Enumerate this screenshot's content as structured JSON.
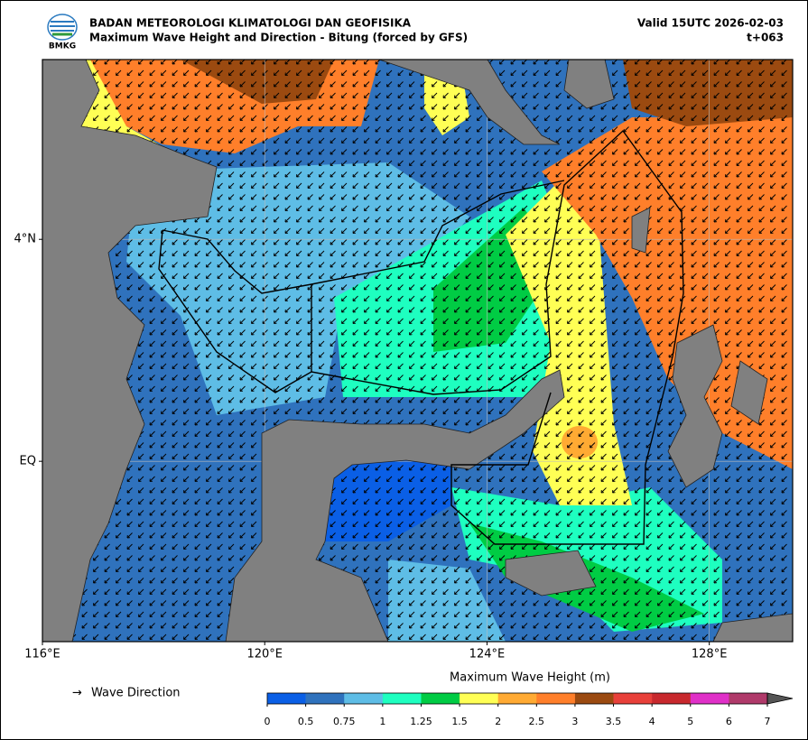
{
  "header": {
    "agency": "BADAN METEOROLOGI KLIMATOLOGI DAN GEOFISIKA",
    "title": "Maximum Wave Height and Direction - Bitung (forced by GFS)",
    "valid": "Valid 15UTC 2026-02-03",
    "lead": "t+063",
    "logo": "BMKG"
  },
  "map": {
    "xlim": [
      116,
      129.5
    ],
    "ylim": [
      -3.25,
      7.24
    ],
    "xticks": [
      {
        "value": 116,
        "label": "116°E"
      },
      {
        "value": 120,
        "label": "120°E"
      },
      {
        "value": 124,
        "label": "124°E"
      },
      {
        "value": 128,
        "label": "128°E"
      }
    ],
    "yticks": [
      {
        "value": 0,
        "label": "EQ"
      },
      {
        "value": 4,
        "label": "4°N"
      }
    ],
    "grid": true
  },
  "legend": {
    "arrow_symbol": "→",
    "arrow_label": "Wave Direction",
    "colorbar_title": "Maximum Wave Height (m)",
    "ticks": [
      0,
      0.5,
      0.75,
      1,
      1.25,
      1.5,
      2,
      2.5,
      3,
      3.5,
      4,
      5,
      6,
      7
    ],
    "colors": [
      "#0a5fe6",
      "#2f72bd",
      "#5ebde6",
      "#1effc0",
      "#00cc44",
      "#ffff55",
      "#ffaa33",
      "#ff7f2a",
      "#9b4a10",
      "#e8403a",
      "#c8282d",
      "#e030c8",
      "#b03a6a"
    ]
  }
}
